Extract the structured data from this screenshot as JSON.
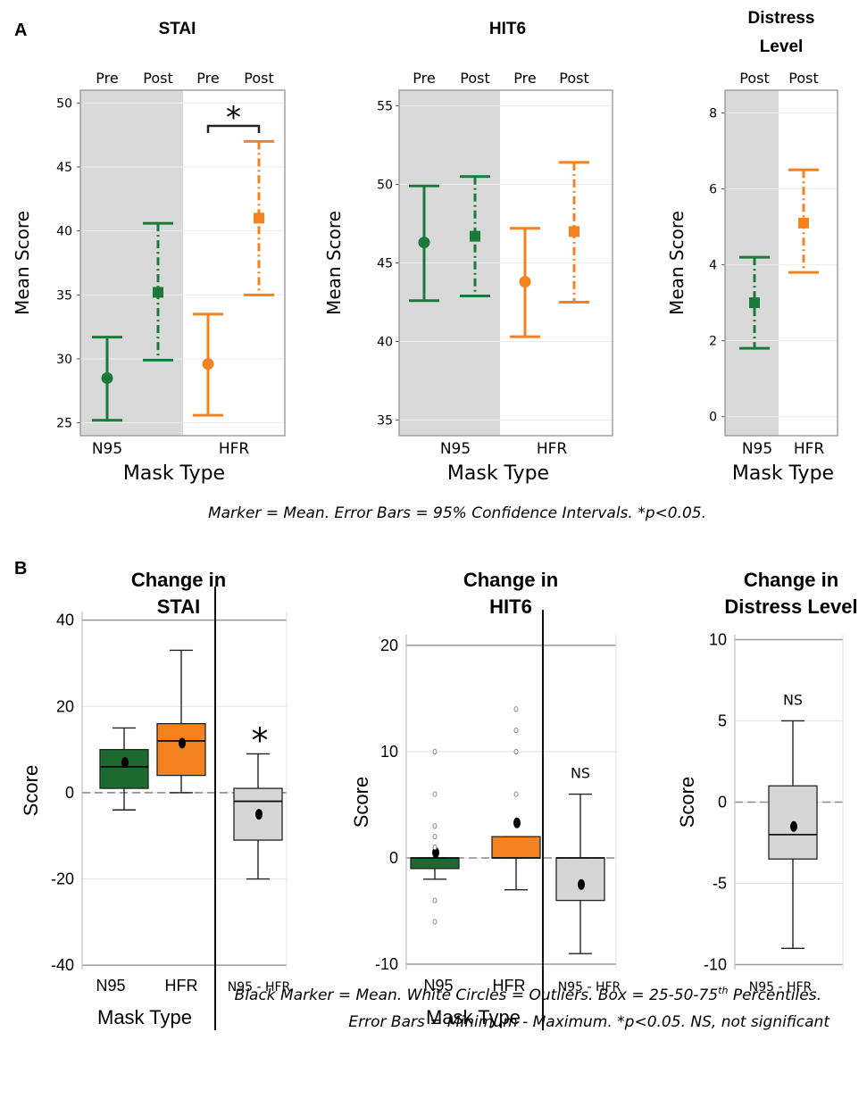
{
  "panel_labels": {
    "a": "A",
    "b": "B"
  },
  "captions": {
    "a": "Marker = Mean. Error Bars = 95% Confidence Intervals. *p<0.05.",
    "b_line1_pre": "Black Marker = Mean. White Circles = Outliers. Box = 25-50-75",
    "b_line1_sup": "th",
    "b_line1_post": " Percentiles.",
    "b_line2": "Error Bars = Minimum - Maximum. *p<0.05. NS, not significant"
  },
  "colors": {
    "n95": "#1a7a3a",
    "hfr": "#f5821f",
    "n95_box": "#1d6a30",
    "hfr_box": "#f58220",
    "diff_box": "#d6d6d6",
    "shade": "#d9d9d9"
  },
  "chart_data": [
    {
      "type": "errorbar",
      "id": "a_stai",
      "title": "STAI",
      "ylabel": "Mean Score",
      "xlabel": "Mask Type",
      "ylim": [
        24,
        51
      ],
      "yticks": [
        25,
        30,
        35,
        40,
        45,
        50
      ],
      "categories": [
        "N95",
        "HFR"
      ],
      "sublabels": [
        "Pre",
        "Post",
        "Pre",
        "Post"
      ],
      "shaded_group": "N95",
      "points": [
        {
          "group": "N95",
          "time": "Pre",
          "mean": 28.5,
          "low": 25.2,
          "high": 31.7
        },
        {
          "group": "N95",
          "time": "Post",
          "mean": 35.2,
          "low": 29.9,
          "high": 40.6
        },
        {
          "group": "HFR",
          "time": "Pre",
          "mean": 29.6,
          "low": 25.6,
          "high": 33.5
        },
        {
          "group": "HFR",
          "time": "Post",
          "mean": 41.0,
          "low": 35.0,
          "high": 47.0
        }
      ],
      "annotation": "*"
    },
    {
      "type": "errorbar",
      "id": "a_hit6",
      "title": "HIT6",
      "ylabel": "Mean Score",
      "xlabel": "Mask Type",
      "ylim": [
        34,
        56
      ],
      "yticks": [
        35,
        40,
        45,
        50,
        55
      ],
      "categories": [
        "N95",
        "HFR"
      ],
      "sublabels": [
        "Pre",
        "Post",
        "Pre",
        "Post"
      ],
      "shaded_group": "N95",
      "points": [
        {
          "group": "N95",
          "time": "Pre",
          "mean": 46.3,
          "low": 42.6,
          "high": 49.9
        },
        {
          "group": "N95",
          "time": "Post",
          "mean": 46.7,
          "low": 42.9,
          "high": 50.5
        },
        {
          "group": "HFR",
          "time": "Pre",
          "mean": 43.8,
          "low": 40.3,
          "high": 47.2
        },
        {
          "group": "HFR",
          "time": "Post",
          "mean": 47.0,
          "low": 42.5,
          "high": 51.4
        }
      ]
    },
    {
      "type": "errorbar",
      "id": "a_distress",
      "title_lines": [
        "Distress",
        "Level"
      ],
      "ylabel": "Mean Score",
      "xlabel": "Mask Type",
      "ylim": [
        -0.5,
        8.6
      ],
      "yticks": [
        0,
        2,
        4,
        6,
        8
      ],
      "categories": [
        "N95",
        "HFR"
      ],
      "sublabels": [
        "Post",
        "Post"
      ],
      "shaded_group": "N95",
      "points": [
        {
          "group": "N95",
          "time": "Post",
          "mean": 3.0,
          "low": 1.8,
          "high": 4.2
        },
        {
          "group": "HFR",
          "time": "Post",
          "mean": 5.1,
          "low": 3.8,
          "high": 6.5
        }
      ]
    },
    {
      "type": "box",
      "id": "b_stai",
      "title_lines": [
        "Change in",
        "STAI"
      ],
      "ylabel": "Score",
      "xlabel": "Mask Type",
      "ylim": [
        -41,
        42
      ],
      "yticks": [
        40,
        20,
        0,
        -20,
        -40
      ],
      "categories": [
        "N95",
        "HFR",
        "N95 - HFR"
      ],
      "boxes": [
        {
          "name": "N95",
          "min": -4,
          "q1": 1,
          "median": 6,
          "q3": 10,
          "max": 15,
          "mean": 7,
          "outliers": []
        },
        {
          "name": "HFR",
          "min": 0,
          "q1": 4,
          "median": 12,
          "q3": 16,
          "max": 33,
          "mean": 11.5,
          "outliers": []
        },
        {
          "name": "N95 - HFR",
          "min": -20,
          "q1": -11,
          "median": -2,
          "q3": 1,
          "max": 9,
          "mean": -5,
          "outliers": []
        }
      ],
      "annotation": "*"
    },
    {
      "type": "box",
      "id": "b_hit6",
      "title_lines": [
        "Change in",
        "HIT6"
      ],
      "ylabel": "Score",
      "xlabel": "Mask Type",
      "ylim": [
        -10.5,
        21
      ],
      "yticks": [
        20,
        10,
        0,
        -10
      ],
      "categories": [
        "N95",
        "HFR",
        "N95 - HFR"
      ],
      "boxes": [
        {
          "name": "N95",
          "min": -2,
          "q1": -1,
          "median": 0,
          "q3": 0,
          "max": 0,
          "mean": 0.5,
          "outliers": [
            10,
            6,
            3,
            2,
            1,
            -4,
            -6
          ]
        },
        {
          "name": "HFR",
          "min": -3,
          "q1": 0,
          "median": 0,
          "q3": 2,
          "max": 2,
          "mean": 3.3,
          "outliers": [
            14,
            12,
            10,
            6
          ]
        },
        {
          "name": "N95 - HFR",
          "min": -9,
          "q1": -4,
          "median": 0,
          "q3": 0,
          "max": 6,
          "mean": -2.5,
          "outliers": []
        }
      ],
      "annotation": "NS"
    },
    {
      "type": "box",
      "id": "b_distress",
      "title_lines": [
        "Change in",
        "Distress Level"
      ],
      "ylabel": "Score",
      "xlabel": "",
      "ylim": [
        -10.3,
        10.3
      ],
      "yticks": [
        10,
        5,
        0,
        -5,
        -10
      ],
      "categories": [
        "N95 - HFR"
      ],
      "boxes": [
        {
          "name": "N95 - HFR",
          "min": -9,
          "q1": -3.5,
          "median": -2,
          "q3": 1,
          "max": 5,
          "mean": -1.5,
          "outliers": []
        }
      ],
      "annotation": "NS"
    }
  ]
}
